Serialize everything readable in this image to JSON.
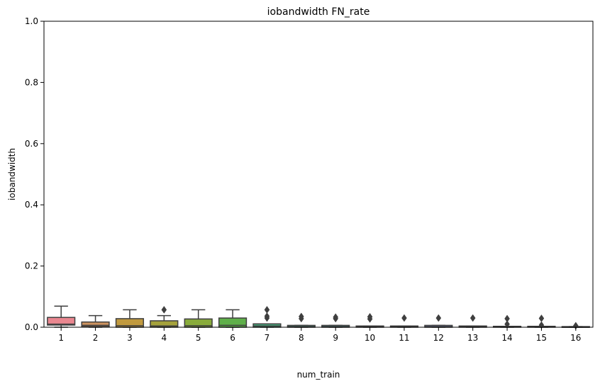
{
  "chart_data": {
    "type": "box",
    "title": "iobandwidth FN_rate",
    "xlabel": "num_train",
    "ylabel": "iobandwidth",
    "ylim": [
      0,
      1.0
    ],
    "yticks": [
      "0.0",
      "0.2",
      "0.4",
      "0.6",
      "0.8",
      "1.0"
    ],
    "grid": false,
    "categories": [
      "1",
      "2",
      "3",
      "4",
      "5",
      "6",
      "7",
      "8",
      "9",
      "10",
      "11",
      "12",
      "13",
      "14",
      "15",
      "16"
    ],
    "colors": [
      "#ea8790",
      "#ce9360",
      "#c19a3e",
      "#a5a23b",
      "#89ac3b",
      "#5fb04a",
      "#48ad7f",
      "#4aa994",
      "#4ca6a6",
      "#4ea4b6",
      "#5ba3c8",
      "#8ca5e8",
      "#ae98ec",
      "#cd8ae8",
      "#e585d7",
      "#ec86b8"
    ],
    "boxes": [
      {
        "min": 0.0,
        "q1": 0.007,
        "median": 0.01,
        "q3": 0.032,
        "max": 0.069,
        "outliers": []
      },
      {
        "min": 0.0,
        "q1": 0.002,
        "median": 0.006,
        "q3": 0.017,
        "max": 0.038,
        "outliers": []
      },
      {
        "min": 0.0,
        "q1": 0.0,
        "median": 0.005,
        "q3": 0.028,
        "max": 0.057,
        "outliers": []
      },
      {
        "min": 0.0,
        "q1": 0.0,
        "median": 0.004,
        "q3": 0.021,
        "max": 0.038,
        "outliers": [
          0.057
        ]
      },
      {
        "min": 0.0,
        "q1": 0.0,
        "median": 0.005,
        "q3": 0.027,
        "max": 0.057,
        "outliers": []
      },
      {
        "min": 0.0,
        "q1": 0.0,
        "median": 0.006,
        "q3": 0.03,
        "max": 0.057,
        "outliers": []
      },
      {
        "min": 0.0,
        "q1": 0.0,
        "median": 0.004,
        "q3": 0.011,
        "max": 0.011,
        "outliers": [
          0.03,
          0.036,
          0.057
        ]
      },
      {
        "min": 0.0,
        "q1": 0.0,
        "median": 0.002,
        "q3": 0.006,
        "max": 0.006,
        "outliers": [
          0.028,
          0.035
        ]
      },
      {
        "min": 0.0,
        "q1": 0.0,
        "median": 0.002,
        "q3": 0.006,
        "max": 0.006,
        "outliers": [
          0.028,
          0.033
        ]
      },
      {
        "min": 0.0,
        "q1": 0.0,
        "median": 0.001,
        "q3": 0.004,
        "max": 0.004,
        "outliers": [
          0.027,
          0.034
        ]
      },
      {
        "min": 0.0,
        "q1": 0.0,
        "median": 0.001,
        "q3": 0.004,
        "max": 0.004,
        "outliers": [
          0.03
        ]
      },
      {
        "min": 0.0,
        "q1": 0.0,
        "median": 0.002,
        "q3": 0.006,
        "max": 0.006,
        "outliers": [
          0.03
        ]
      },
      {
        "min": 0.0,
        "q1": 0.0,
        "median": 0.001,
        "q3": 0.004,
        "max": 0.004,
        "outliers": [
          0.03
        ]
      },
      {
        "min": 0.0,
        "q1": 0.0,
        "median": 0.001,
        "q3": 0.003,
        "max": 0.003,
        "outliers": [
          0.01,
          0.028
        ]
      },
      {
        "min": 0.0,
        "q1": 0.0,
        "median": 0.001,
        "q3": 0.003,
        "max": 0.003,
        "outliers": [
          0.007,
          0.029
        ]
      },
      {
        "min": 0.0,
        "q1": 0.0,
        "median": 0.0,
        "q3": 0.002,
        "max": 0.002,
        "outliers": [
          0.005
        ]
      }
    ]
  }
}
